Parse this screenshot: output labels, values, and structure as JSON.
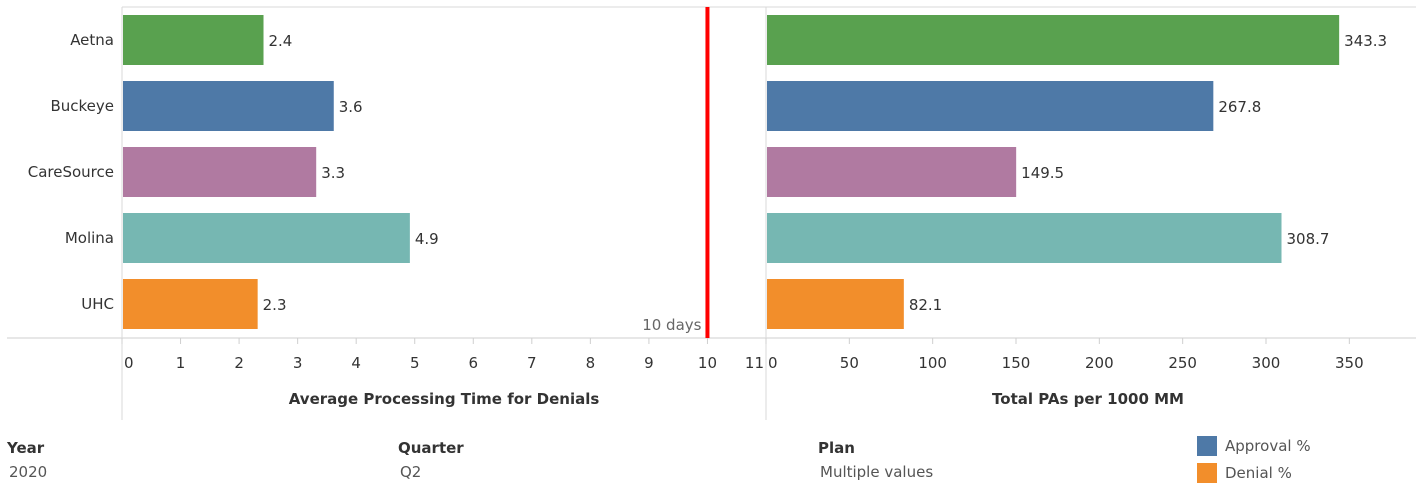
{
  "chart_data": [
    {
      "type": "bar",
      "orientation": "horizontal",
      "categories": [
        "Aetna",
        "Buckeye",
        "CareSource",
        "Molina",
        "UHC"
      ],
      "values": [
        2.4,
        3.6,
        3.3,
        4.9,
        2.3
      ],
      "value_labels": [
        "2.4",
        "3.6",
        "3.3",
        "4.9",
        "2.3"
      ],
      "xlabel": "Average Processing Time for Denials",
      "xlim": [
        0,
        11
      ],
      "xticks": [
        0,
        1,
        2,
        3,
        4,
        5,
        6,
        7,
        8,
        9,
        10,
        11
      ],
      "reference_line": {
        "value": 10,
        "label": "10 days",
        "color": "#ff0000"
      }
    },
    {
      "type": "bar",
      "orientation": "horizontal",
      "categories": [
        "Aetna",
        "Buckeye",
        "CareSource",
        "Molina",
        "UHC"
      ],
      "values": [
        343.3,
        267.8,
        149.5,
        308.7,
        82.1
      ],
      "value_labels": [
        "343.3",
        "267.8",
        "149.5",
        "308.7",
        "82.1"
      ],
      "xlabel": "Total PAs per 1000 MM",
      "xlim": [
        0,
        390
      ],
      "xticks": [
        0,
        50,
        100,
        150,
        200,
        250,
        300,
        350
      ]
    }
  ],
  "bar_colors": [
    "#59a14f",
    "#4e79a7",
    "#b07aa1",
    "#76b7b2",
    "#f28e2b"
  ],
  "filters": [
    {
      "label": "Year",
      "value": "2020"
    },
    {
      "label": "Quarter",
      "value": "Q2"
    },
    {
      "label": "Plan",
      "value": "Multiple values"
    }
  ],
  "legend": [
    {
      "label": "Approval %",
      "color": "#4e79a7"
    },
    {
      "label": "Denial %",
      "color": "#f28e2b"
    }
  ]
}
